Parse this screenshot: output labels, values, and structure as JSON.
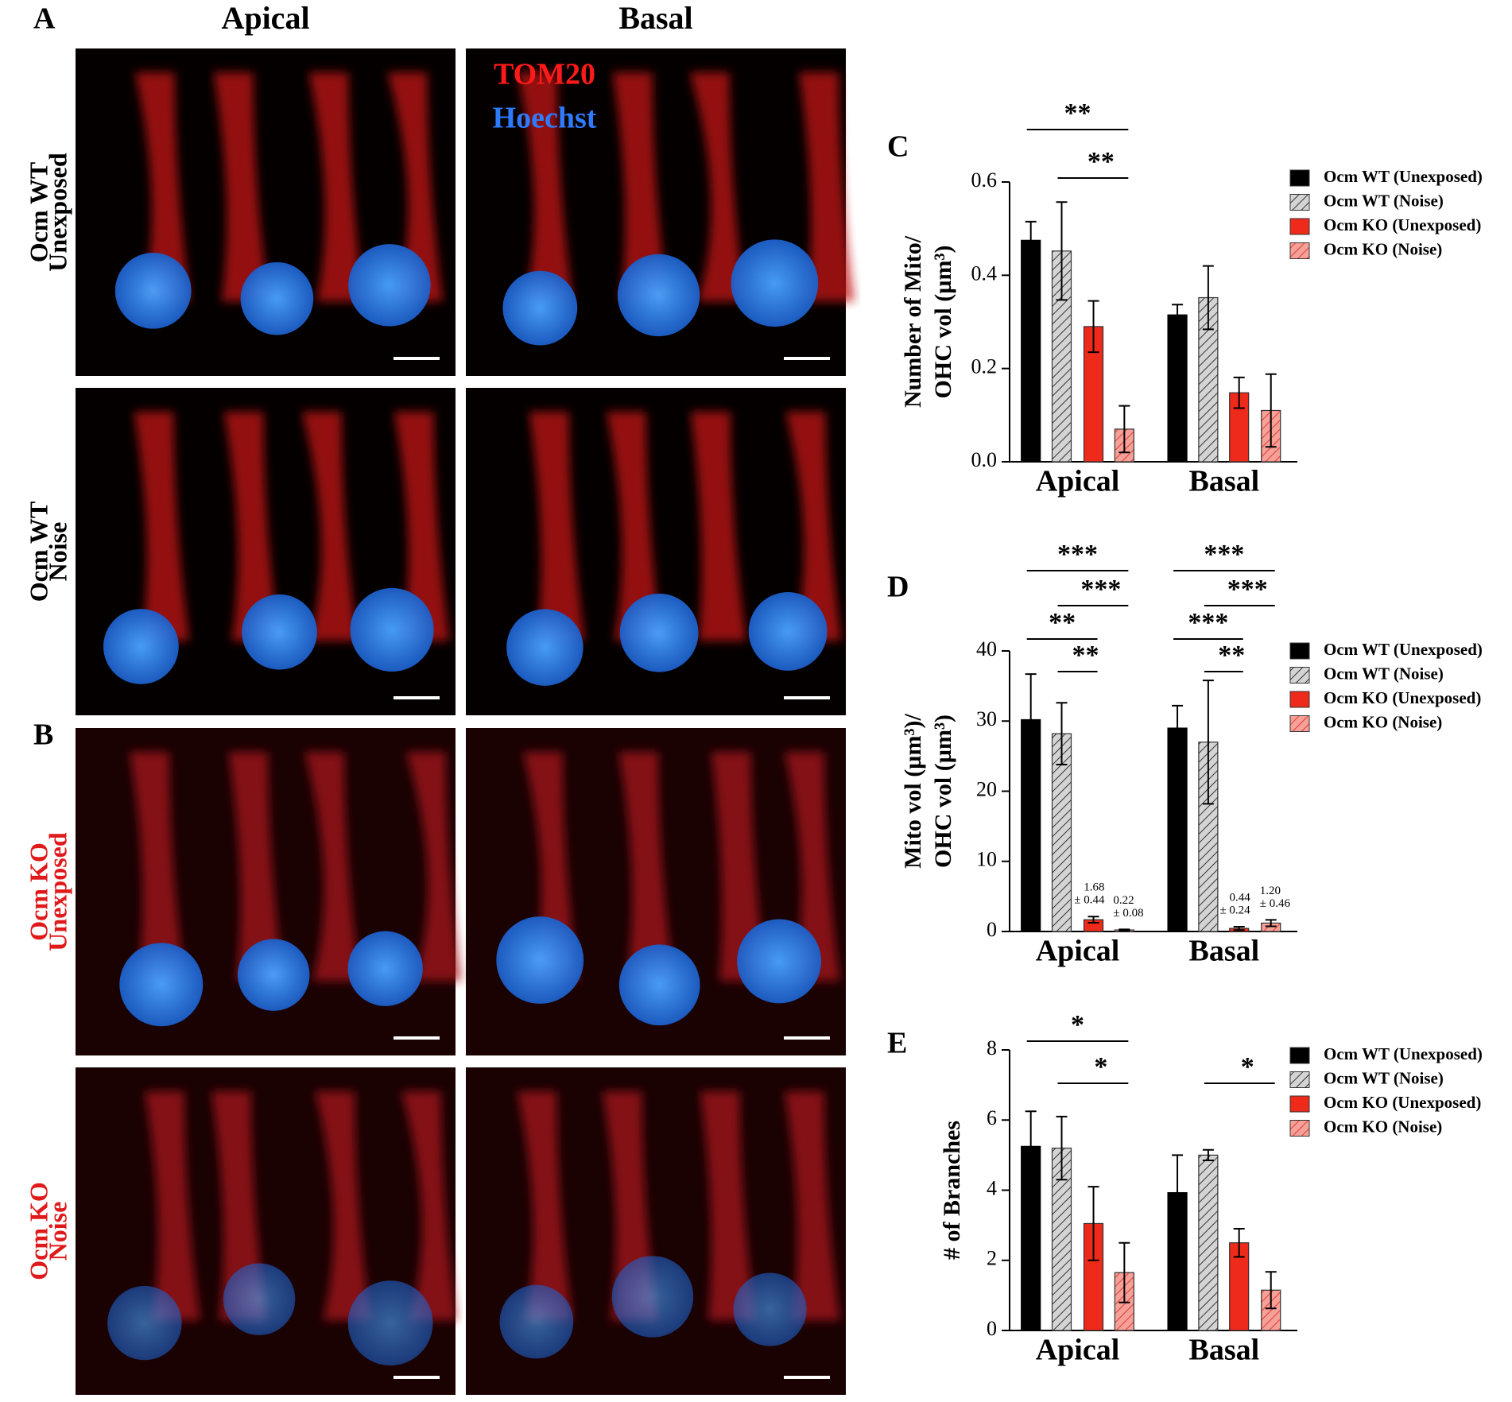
{
  "panel_labels": [
    "A",
    "B",
    "C",
    "D",
    "E"
  ],
  "column_headers": [
    "Apical",
    "Basal"
  ],
  "stain_legend": [
    "TOM20",
    "Hoechst"
  ],
  "row_labels": [
    [
      "Ocm WT",
      "Unexposed"
    ],
    [
      "Ocm WT",
      "Noise"
    ],
    [
      "Ocm KO",
      "Unexposed"
    ],
    [
      "Ocm KO",
      "Noise"
    ]
  ],
  "chart_data": [
    {
      "type": "bar",
      "ylabel": [
        "Number of Mito/",
        "OHC vol (µm³)"
      ],
      "categories": [
        "Apical",
        "Basal"
      ],
      "ylim": [
        0,
        0.6
      ],
      "yticks": [
        {
          "value": 0,
          "label": "0.0"
        },
        0.2,
        0.4,
        0.6
      ],
      "series": [
        {
          "name": "Ocm WT (Unexposed)",
          "color": "#000000",
          "hatch": false,
          "values": [
            0.475,
            0.315
          ],
          "errors": [
            0.04,
            0.022
          ]
        },
        {
          "name": "Ocm WT (Noise)",
          "color": "#d4d4d4",
          "hatch": true,
          "values": [
            0.452,
            0.352
          ],
          "errors": [
            0.105,
            0.068
          ]
        },
        {
          "name": "Ocm KO (Unexposed)",
          "color": "#ee2a1b",
          "hatch": false,
          "values": [
            0.29,
            0.148
          ],
          "errors": [
            0.055,
            0.033
          ]
        },
        {
          "name": "Ocm KO (Noise)",
          "color": "#f5a19a",
          "hatch": true,
          "values": [
            0.07,
            0.11
          ],
          "errors": [
            0.05,
            0.078
          ]
        }
      ],
      "annotations": [
        "**",
        "**"
      ]
    },
    {
      "type": "bar",
      "ylabel": [
        "Mito vol (µm³)/",
        "OHC vol (µm³)"
      ],
      "categories": [
        "Apical",
        "Basal"
      ],
      "ylim": [
        0,
        40
      ],
      "yticks": [
        0,
        10,
        20,
        30,
        40
      ],
      "series": [
        {
          "name": "Ocm WT (Unexposed)",
          "color": "#000000",
          "hatch": false,
          "values": [
            30.2,
            29
          ],
          "errors": [
            6.5,
            3.2
          ]
        },
        {
          "name": "Ocm WT (Noise)",
          "color": "#d4d4d4",
          "hatch": true,
          "values": [
            28.2,
            27
          ],
          "errors": [
            4.4,
            8.8
          ]
        },
        {
          "name": "Ocm KO (Unexposed)",
          "color": "#ee2a1b",
          "hatch": false,
          "values": [
            1.68,
            0.44
          ],
          "errors": [
            0.44,
            0.24
          ],
          "value_labels": [
            "1.68",
            "0.44"
          ],
          "error_labels": [
            "± 0.44",
            "± 0.24"
          ]
        },
        {
          "name": "Ocm KO (Noise)",
          "color": "#f5a19a",
          "hatch": true,
          "values": [
            0.22,
            1.2
          ],
          "errors": [
            0.08,
            0.46
          ],
          "value_labels": [
            "0.22",
            "1.20"
          ],
          "error_labels": [
            "± 0.08",
            "± 0.46"
          ]
        }
      ],
      "annotations": [
        "***",
        "***",
        "**",
        "**",
        "***",
        "***",
        "***",
        "**"
      ]
    },
    {
      "type": "bar",
      "ylabel": [
        "# of Branches"
      ],
      "categories": [
        "Apical",
        "Basal"
      ],
      "ylim": [
        0,
        8
      ],
      "yticks": [
        0,
        2,
        4,
        6,
        8
      ],
      "series": [
        {
          "name": "Ocm WT (Unexposed)",
          "color": "#000000",
          "hatch": false,
          "values": [
            5.25,
            3.93
          ],
          "errors": [
            1.0,
            1.07
          ]
        },
        {
          "name": "Ocm WT (Noise)",
          "color": "#d4d4d4",
          "hatch": true,
          "values": [
            5.2,
            5.0
          ],
          "errors": [
            0.9,
            0.15
          ]
        },
        {
          "name": "Ocm KO (Unexposed)",
          "color": "#ee2a1b",
          "hatch": false,
          "values": [
            3.05,
            2.5
          ],
          "errors": [
            1.05,
            0.4
          ]
        },
        {
          "name": "Ocm KO (Noise)",
          "color": "#f5a19a",
          "hatch": true,
          "values": [
            1.65,
            1.15
          ],
          "errors": [
            0.85,
            0.52
          ]
        }
      ],
      "annotations": [
        "*",
        "*",
        "*"
      ]
    }
  ]
}
